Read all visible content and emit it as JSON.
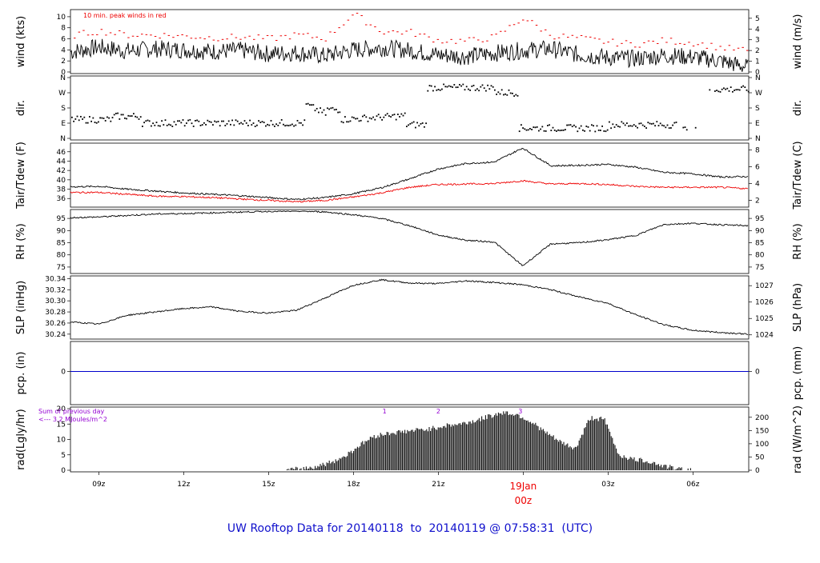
{
  "footer": {
    "title": "UW Rooftop Data for 20140118  to  20140119 @ 07:58:31  (UTC)",
    "date_mark": "19Jan",
    "date_mark_hour": "00z"
  },
  "colors": {
    "title": "#1010cc",
    "red": "#ee0000",
    "blue": "#0000cc",
    "purple": "#9400d3"
  },
  "x_axis": {
    "ticks": [
      {
        "label": "09z",
        "hour": 9
      },
      {
        "label": "12z",
        "hour": 12
      },
      {
        "label": "15z",
        "hour": 15
      },
      {
        "label": "18z",
        "hour": 18
      },
      {
        "label": "21z",
        "hour": 21
      },
      {
        "label": "03z",
        "hour": 27
      },
      {
        "label": "06z",
        "hour": 30
      }
    ],
    "start_hour": 8.0,
    "end_hour": 31.97
  },
  "chart_data": [
    {
      "type": "line",
      "panel": "wind",
      "ylabel_left": "wind (kts)",
      "ylabel_right": "wind (m/s)",
      "annotation": "10 min. peak winds in red",
      "ylim": [
        0,
        11
      ],
      "left_ticks": [
        0,
        2,
        4,
        6,
        8,
        10
      ],
      "right_ticks": [
        0,
        1,
        2,
        3,
        4,
        5
      ],
      "series": [
        {
          "values_hourly": [
            3.6,
            4.5,
            3.8,
            4.2,
            4.0,
            3.7,
            3.9,
            3.3,
            3.5,
            2.9,
            4.0,
            4.4,
            3.9,
            3.1,
            2.8,
            3.4,
            3.9,
            4.2,
            3.1,
            2.6,
            2.4,
            3.0,
            2.7,
            2.0,
            0.8
          ]
        },
        {
          "peaks_hourly": [
            6.6,
            7.4,
            6.7,
            6.7,
            6.5,
            6.2,
            6.3,
            6.0,
            6.7,
            6.1,
            10.5,
            7.3,
            7.2,
            5.7,
            5.6,
            6.3,
            9.8,
            6.6,
            6.1,
            5.4,
            5.0,
            5.7,
            5.3,
            4.4,
            3.8
          ]
        }
      ]
    },
    {
      "type": "scatter",
      "panel": "dir",
      "ylabel_left": "dir.",
      "ylabel_right": "dir.",
      "left_ticks": [
        "N",
        "E",
        "S",
        "W",
        "N"
      ],
      "degrees": [
        0,
        90,
        180,
        270,
        360
      ]
    },
    {
      "type": "line",
      "panel": "temp",
      "ylabel_left": "Tair/Tdew (F)",
      "ylabel_right": "Tair/Tdew (C)",
      "ylim": [
        34.5,
        47.5
      ],
      "left_ticks": [
        36,
        38,
        40,
        42,
        44,
        46
      ],
      "right_ticks": [
        2,
        4,
        6,
        8
      ],
      "series": [
        {
          "values_hourly": [
            38.5,
            38.6,
            38.0,
            37.6,
            37.2,
            36.9,
            36.6,
            36.2,
            35.8,
            36.2,
            37.0,
            38.3,
            40.2,
            42.3,
            43.5,
            43.8,
            46.8,
            43.0,
            43.1,
            43.3,
            42.7,
            41.6,
            41.3,
            40.6,
            40.7
          ]
        },
        {
          "values_hourly": [
            37.3,
            37.3,
            36.9,
            36.5,
            36.4,
            36.2,
            35.9,
            35.6,
            35.3,
            35.6,
            36.3,
            37.2,
            38.4,
            39.0,
            39.1,
            39.2,
            39.8,
            39.1,
            39.2,
            39.0,
            38.6,
            38.4,
            38.4,
            38.4,
            38.1
          ]
        }
      ]
    },
    {
      "type": "line",
      "panel": "rh",
      "ylabel_left": "RH (%)",
      "ylabel_right": "RH (%)",
      "ylim": [
        73,
        98
      ],
      "left_ticks": [
        75,
        80,
        85,
        90,
        95
      ],
      "right_ticks": [
        75,
        80,
        85,
        90,
        95
      ],
      "series": [
        {
          "values_hourly": [
            95.3,
            95.6,
            96.2,
            96.8,
            97.0,
            97.3,
            97.6,
            97.9,
            98.0,
            97.7,
            96.5,
            95.0,
            92.0,
            88.2,
            86.0,
            85.3,
            75.5,
            84.5,
            85.0,
            86.2,
            88.0,
            92.5,
            93.0,
            92.4,
            92.0
          ]
        }
      ]
    },
    {
      "type": "line",
      "panel": "slp",
      "ylabel_left": "SLP (inHg)",
      "ylabel_right": "SLP (hPa)",
      "ylim": [
        30.234,
        30.342
      ],
      "left_ticks": [
        30.24,
        30.26,
        30.28,
        30.3,
        30.32,
        30.34
      ],
      "right_ticks": [
        1024,
        1025,
        1026,
        1027
      ],
      "series": [
        {
          "values_hourly": [
            30.262,
            30.258,
            30.274,
            30.28,
            30.286,
            30.289,
            30.281,
            30.278,
            30.283,
            30.305,
            30.328,
            30.338,
            30.332,
            30.331,
            30.336,
            30.333,
            30.329,
            30.32,
            30.307,
            30.296,
            30.275,
            30.257,
            30.247,
            30.243,
            30.24
          ]
        }
      ]
    },
    {
      "type": "line",
      "panel": "pcp",
      "ylabel_left": "pcp. (in)",
      "ylabel_right": "pcp. (mm)",
      "left_ticks": [
        0
      ],
      "right_ticks": [
        0
      ],
      "series": [
        {
          "values_hourly": [
            0,
            0,
            0,
            0,
            0,
            0,
            0,
            0,
            0,
            0,
            0,
            0,
            0,
            0,
            0,
            0,
            0,
            0,
            0,
            0,
            0,
            0,
            0,
            0,
            0
          ]
        }
      ]
    },
    {
      "type": "area",
      "panel": "rad",
      "ylabel_left": "rad(Lgly/hr)",
      "ylabel_right": "rad (W/m^2)",
      "annotation_1": "Sum of previous day",
      "annotation_2": "<--- 3.2 MJoules/m^2",
      "ylim": [
        0,
        20
      ],
      "left_ticks": [
        0,
        5,
        10,
        15,
        20
      ],
      "right_ticks": [
        0,
        50,
        100,
        150,
        200
      ],
      "hour_markers": [
        "1",
        "2",
        "3"
      ],
      "series": [
        {
          "values_halfhourly": [
            0,
            0,
            0,
            0,
            0,
            0,
            0,
            0,
            0,
            0,
            0,
            0,
            0,
            0,
            0,
            0,
            0.5,
            1.2,
            2.5,
            4.5,
            8.0,
            11.0,
            12.0,
            12.5,
            13.0,
            13.5,
            14.5,
            15.0,
            16.0,
            17.5,
            18.8,
            18.0,
            15.5,
            12.0,
            9.0,
            7.0,
            17.0,
            16.5,
            5.0,
            3.5,
            3.0,
            1.5,
            0.5,
            0,
            0,
            0,
            0,
            0
          ]
        }
      ]
    }
  ]
}
